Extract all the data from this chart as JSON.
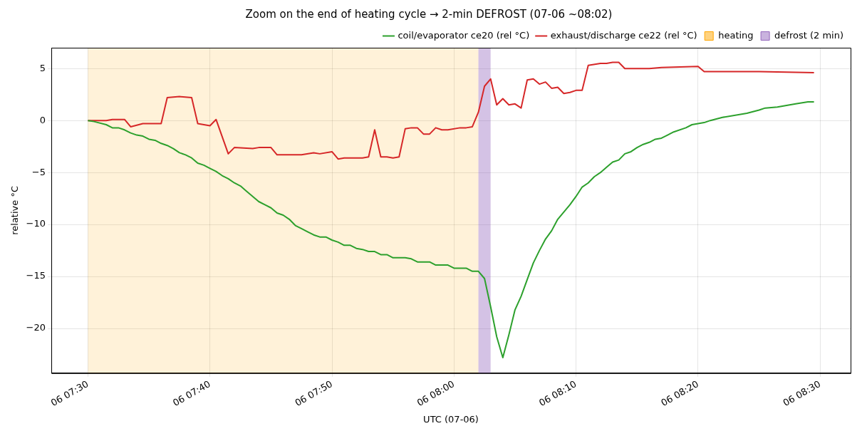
{
  "chart_data": {
    "type": "line",
    "title": "Zoom on the end of heating cycle → 2-min DEFROST (07-06 ~08:02)",
    "xlabel": "UTC (07-06)",
    "ylabel": "relative °C",
    "xlim": [
      "--07-06T07:27:00",
      "--07-06T08:32:30"
    ],
    "ylim": [
      -24.3,
      7
    ],
    "xticks": [
      {
        "value": "--07-06T07:30:00",
        "label": "06 07:30"
      },
      {
        "value": "--07-06T07:40:00",
        "label": "06 07:40"
      },
      {
        "value": "--07-06T07:50:00",
        "label": "06 07:50"
      },
      {
        "value": "--07-06T08:00:00",
        "label": "06 08:00"
      },
      {
        "value": "--07-06T08:10:00",
        "label": "06 08:10"
      },
      {
        "value": "--07-06T08:20:00",
        "label": "06 08:20"
      },
      {
        "value": "--07-06T08:30:00",
        "label": "06 08:30"
      }
    ],
    "yticks": [
      {
        "value": -20,
        "label": "−20"
      },
      {
        "value": -15,
        "label": "−15"
      },
      {
        "value": -10,
        "label": "−10"
      },
      {
        "value": -5,
        "label": "−5"
      },
      0,
      5
    ],
    "grid": true,
    "legend": "top right",
    "line_style": "solid",
    "series": [
      {
        "name": "coil/evaporator ce20 (rel °C)",
        "color": "#2ca02c",
        "x": [
          "--07-06T07:30:00",
          "--07-06T07:30:30",
          "--07-06T07:31:30",
          "--07-06T07:32:00",
          "--07-06T07:32:30",
          "--07-06T07:33:00",
          "--07-06T07:33:30",
          "--07-06T07:34:00",
          "--07-06T07:34:30",
          "--07-06T07:35:00",
          "--07-06T07:35:30",
          "--07-06T07:36:00",
          "--07-06T07:36:30",
          "--07-06T07:37:00",
          "--07-06T07:37:30",
          "--07-06T07:38:00",
          "--07-06T07:38:30",
          "--07-06T07:39:00",
          "--07-06T07:39:30",
          "--07-06T07:40:00",
          "--07-06T07:40:30",
          "--07-06T07:41:00",
          "--07-06T07:41:30",
          "--07-06T07:42:00",
          "--07-06T07:42:30",
          "--07-06T07:43:00",
          "--07-06T07:43:30",
          "--07-06T07:44:00",
          "--07-06T07:44:30",
          "--07-06T07:45:00",
          "--07-06T07:45:30",
          "--07-06T07:46:00",
          "--07-06T07:46:30",
          "--07-06T07:47:00",
          "--07-06T07:47:30",
          "--07-06T07:48:00",
          "--07-06T07:48:30",
          "--07-06T07:49:00",
          "--07-06T07:49:30",
          "--07-06T07:50:00",
          "--07-06T07:50:30",
          "--07-06T07:51:00",
          "--07-06T07:51:30",
          "--07-06T07:52:00",
          "--07-06T07:52:30",
          "--07-06T07:53:00",
          "--07-06T07:53:30",
          "--07-06T07:54:00",
          "--07-06T07:54:30",
          "--07-06T07:55:00",
          "--07-06T07:56:00",
          "--07-06T07:56:30",
          "--07-06T07:57:00",
          "--07-06T07:58:00",
          "--07-06T07:58:30",
          "--07-06T07:59:30",
          "--07-06T08:00:00",
          "--07-06T08:01:00",
          "--07-06T08:01:30",
          "--07-06T08:02:00",
          "--07-06T08:02:30",
          "--07-06T08:03:00",
          "--07-06T08:03:30",
          "--07-06T08:04:00",
          "--07-06T08:04:30",
          "--07-06T08:05:00",
          "--07-06T08:05:30",
          "--07-06T08:06:00",
          "--07-06T08:06:30",
          "--07-06T08:07:00",
          "--07-06T08:07:30",
          "--07-06T08:08:00",
          "--07-06T08:08:30",
          "--07-06T08:09:00",
          "--07-06T08:09:30",
          "--07-06T08:10:00",
          "--07-06T08:10:30",
          "--07-06T08:11:00",
          "--07-06T08:11:30",
          "--07-06T08:12:00",
          "--07-06T08:12:30",
          "--07-06T08:13:00",
          "--07-06T08:13:30",
          "--07-06T08:14:00",
          "--07-06T08:14:30",
          "--07-06T08:15:00",
          "--07-06T08:15:30",
          "--07-06T08:16:00",
          "--07-06T08:16:30",
          "--07-06T08:17:00",
          "--07-06T08:17:30",
          "--07-06T08:18:00",
          "--07-06T08:19:00",
          "--07-06T08:19:30",
          "--07-06T08:20:30",
          "--07-06T08:21:00",
          "--07-06T08:22:00",
          "--07-06T08:24:00",
          "--07-06T08:25:00",
          "--07-06T08:25:30",
          "--07-06T08:26:30",
          "--07-06T08:28:00",
          "--07-06T08:29:00",
          "--07-06T08:29:30"
        ],
        "values": [
          0,
          -0.1,
          -0.4,
          -0.7,
          -0.7,
          -0.9,
          -1.2,
          -1.4,
          -1.5,
          -1.8,
          -1.9,
          -2.2,
          -2.4,
          -2.7,
          -3.1,
          -3.3,
          -3.6,
          -4.1,
          -4.3,
          -4.6,
          -4.9,
          -5.3,
          -5.6,
          -6.0,
          -6.3,
          -6.8,
          -7.3,
          -7.8,
          -8.1,
          -8.4,
          -8.9,
          -9.1,
          -9.5,
          -10.1,
          -10.4,
          -10.7,
          -11.0,
          -11.2,
          -11.2,
          -11.5,
          -11.7,
          -12.0,
          -12.0,
          -12.3,
          -12.4,
          -12.6,
          -12.6,
          -12.9,
          -12.9,
          -13.2,
          -13.2,
          -13.3,
          -13.6,
          -13.6,
          -13.9,
          -13.9,
          -14.2,
          -14.2,
          -14.5,
          -14.5,
          -15.2,
          -17.9,
          -20.8,
          -22.8,
          -20.6,
          -18.2,
          -16.9,
          -15.3,
          -13.7,
          -12.5,
          -11.4,
          -10.6,
          -9.5,
          -8.8,
          -8.1,
          -7.3,
          -6.4,
          -6.0,
          -5.4,
          -5.0,
          -4.5,
          -4.0,
          -3.8,
          -3.2,
          -3.0,
          -2.6,
          -2.3,
          -2.1,
          -1.8,
          -1.7,
          -1.4,
          -1.1,
          -0.7,
          -0.4,
          -0.2,
          0.0,
          0.3,
          0.7,
          1.0,
          1.2,
          1.3,
          1.6,
          1.8,
          1.8
        ]
      },
      {
        "name": "exhaust/discharge ce22 (rel °C)",
        "color": "#d62728",
        "x": [
          "--07-06T07:30:00",
          "--07-06T07:31:30",
          "--07-06T07:32:00",
          "--07-06T07:33:00",
          "--07-06T07:33:30",
          "--07-06T07:34:30",
          "--07-06T07:36:00",
          "--07-06T07:36:30",
          "--07-06T07:37:30",
          "--07-06T07:38:30",
          "--07-06T07:39:00",
          "--07-06T07:40:00",
          "--07-06T07:40:30",
          "--07-06T07:41:30",
          "--07-06T07:42:00",
          "--07-06T07:43:30",
          "--07-06T07:44:00",
          "--07-06T07:45:00",
          "--07-06T07:45:30",
          "--07-06T07:47:30",
          "--07-06T07:48:30",
          "--07-06T07:49:00",
          "--07-06T07:50:00",
          "--07-06T07:50:30",
          "--07-06T07:51:00",
          "--07-06T07:52:30",
          "--07-06T07:53:00",
          "--07-06T07:53:30",
          "--07-06T07:54:00",
          "--07-06T07:54:30",
          "--07-06T07:55:00",
          "--07-06T07:55:30",
          "--07-06T07:56:00",
          "--07-06T07:56:30",
          "--07-06T07:57:00",
          "--07-06T07:57:30",
          "--07-06T07:58:00",
          "--07-06T07:58:30",
          "--07-06T07:59:00",
          "--07-06T07:59:30",
          "--07-06T08:00:30",
          "--07-06T08:01:00",
          "--07-06T08:01:30",
          "--07-06T08:02:00",
          "--07-06T08:02:30",
          "--07-06T08:03:00",
          "--07-06T08:03:30",
          "--07-06T08:04:00",
          "--07-06T08:04:30",
          "--07-06T08:05:00",
          "--07-06T08:05:30",
          "--07-06T08:06:00",
          "--07-06T08:06:30",
          "--07-06T08:07:00",
          "--07-06T08:07:30",
          "--07-06T08:08:00",
          "--07-06T08:08:30",
          "--07-06T08:09:00",
          "--07-06T08:09:30",
          "--07-06T08:10:00",
          "--07-06T08:10:30",
          "--07-06T08:11:00",
          "--07-06T08:12:00",
          "--07-06T08:12:30",
          "--07-06T08:13:00",
          "--07-06T08:13:30",
          "--07-06T08:14:00",
          "--07-06T08:14:30",
          "--07-06T08:16:00",
          "--07-06T08:17:00",
          "--07-06T08:20:00",
          "--07-06T08:20:30",
          "--07-06T08:25:00",
          "--07-06T08:29:30"
        ],
        "values": [
          0,
          0,
          0.1,
          0.1,
          -0.6,
          -0.3,
          -0.3,
          2.2,
          2.3,
          2.2,
          -0.3,
          -0.5,
          0.1,
          -3.2,
          -2.6,
          -2.7,
          -2.6,
          -2.6,
          -3.3,
          -3.3,
          -3.1,
          -3.2,
          -3.0,
          -3.7,
          -3.6,
          -3.6,
          -3.5,
          -0.9,
          -3.5,
          -3.5,
          -3.6,
          -3.5,
          -0.8,
          -0.7,
          -0.7,
          -1.3,
          -1.3,
          -0.7,
          -0.9,
          -0.9,
          -0.7,
          -0.7,
          -0.6,
          0.8,
          3.3,
          4.0,
          1.5,
          2.1,
          1.5,
          1.6,
          1.2,
          3.9,
          4.0,
          3.5,
          3.7,
          3.1,
          3.2,
          2.6,
          2.7,
          2.9,
          2.9,
          5.3,
          5.5,
          5.5,
          5.6,
          5.6,
          5.0,
          5.0,
          5.0,
          5.1,
          5.2,
          4.7,
          4.7,
          4.6
        ]
      }
    ],
    "bands": [
      {
        "axis": "x",
        "from": "--07-06T07:30:00",
        "to": "--07-06T08:02:00",
        "label": "heating",
        "color": "#ffa500"
      },
      {
        "axis": "x",
        "from": "--07-06T08:02:00",
        "to": "--07-06T08:03:00",
        "label": "defrost (2 min)",
        "color": "#9467bd"
      }
    ]
  }
}
